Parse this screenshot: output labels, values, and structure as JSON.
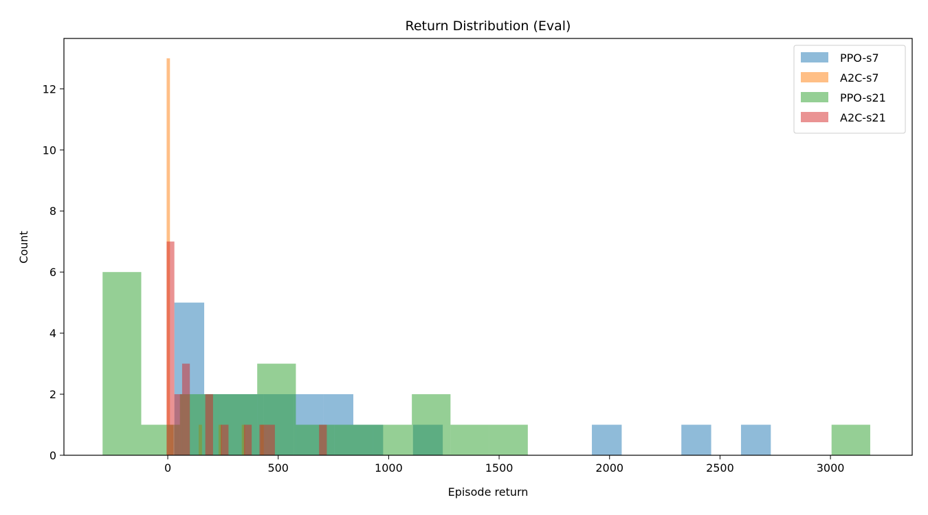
{
  "chart_data": {
    "type": "bar",
    "title": "Return Distribution (Eval)",
    "xlabel": "Episode return",
    "ylabel": "Count",
    "xlim": [
      -470,
      3370
    ],
    "ylim": [
      0,
      13.65
    ],
    "xticks": [
      0,
      500,
      1000,
      1500,
      2000,
      2500,
      3000
    ],
    "yticks": [
      0,
      2,
      4,
      6,
      8,
      10,
      12
    ],
    "legend_position": "top-right",
    "series": [
      {
        "name": "PPO-s7",
        "color": "#1f77b4",
        "opacity": 0.5,
        "bins": [
          {
            "x0": 30,
            "x1": 165,
            "count": 5
          },
          {
            "x0": 165,
            "x1": 300,
            "count": 2
          },
          {
            "x0": 300,
            "x1": 435,
            "count": 2
          },
          {
            "x0": 435,
            "x1": 570,
            "count": 2
          },
          {
            "x0": 570,
            "x1": 705,
            "count": 2
          },
          {
            "x0": 705,
            "x1": 840,
            "count": 2
          },
          {
            "x0": 840,
            "x1": 975,
            "count": 1
          },
          {
            "x0": 1110,
            "x1": 1245,
            "count": 1
          },
          {
            "x0": 1920,
            "x1": 2055,
            "count": 1
          },
          {
            "x0": 2325,
            "x1": 2460,
            "count": 1
          },
          {
            "x0": 2595,
            "x1": 2730,
            "count": 1
          }
        ]
      },
      {
        "name": "A2C-s7",
        "color": "#ff7f0e",
        "opacity": 0.5,
        "bins": [
          {
            "x0": -5,
            "x1": 10,
            "count": 13
          },
          {
            "x0": 10,
            "x1": 25,
            "count": 1
          },
          {
            "x0": 140,
            "x1": 155,
            "count": 1
          },
          {
            "x0": 230,
            "x1": 245,
            "count": 1
          },
          {
            "x0": 335,
            "x1": 350,
            "count": 1
          },
          {
            "x0": 420,
            "x1": 435,
            "count": 1
          }
        ]
      },
      {
        "name": "PPO-s21",
        "color": "#2ca02c",
        "opacity": 0.5,
        "bins": [
          {
            "x0": -295,
            "x1": -120,
            "count": 6
          },
          {
            "x0": -120,
            "x1": 55,
            "count": 1
          },
          {
            "x0": 55,
            "x1": 230,
            "count": 2
          },
          {
            "x0": 230,
            "x1": 405,
            "count": 2
          },
          {
            "x0": 405,
            "x1": 580,
            "count": 3
          },
          {
            "x0": 580,
            "x1": 755,
            "count": 1
          },
          {
            "x0": 755,
            "x1": 930,
            "count": 1
          },
          {
            "x0": 930,
            "x1": 1105,
            "count": 1
          },
          {
            "x0": 1105,
            "x1": 1280,
            "count": 2
          },
          {
            "x0": 1280,
            "x1": 1455,
            "count": 1
          },
          {
            "x0": 1455,
            "x1": 1630,
            "count": 1
          },
          {
            "x0": 3005,
            "x1": 3180,
            "count": 1
          }
        ]
      },
      {
        "name": "A2C-s21",
        "color": "#d62728",
        "opacity": 0.5,
        "bins": [
          {
            "x0": -5,
            "x1": 30,
            "count": 7
          },
          {
            "x0": 30,
            "x1": 65,
            "count": 2
          },
          {
            "x0": 65,
            "x1": 100,
            "count": 3
          },
          {
            "x0": 170,
            "x1": 205,
            "count": 2
          },
          {
            "x0": 240,
            "x1": 275,
            "count": 1
          },
          {
            "x0": 345,
            "x1": 380,
            "count": 1
          },
          {
            "x0": 415,
            "x1": 450,
            "count": 1
          },
          {
            "x0": 450,
            "x1": 485,
            "count": 1
          },
          {
            "x0": 685,
            "x1": 720,
            "count": 1
          }
        ]
      }
    ]
  }
}
